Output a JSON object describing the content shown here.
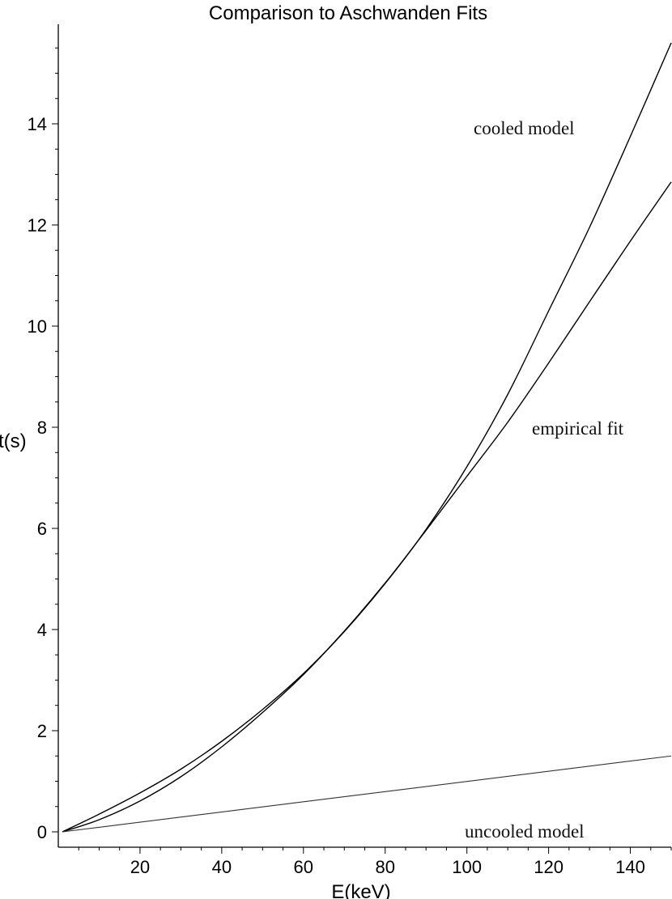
{
  "chart_data": {
    "type": "line",
    "title": "Comparison to Aschwanden Fits",
    "xlabel": "E(keV)",
    "ylabel": "t(s)",
    "xlim": [
      0,
      150
    ],
    "ylim": [
      0,
      15.8
    ],
    "grid": false,
    "x_ticks": [
      20,
      40,
      60,
      80,
      100,
      120,
      140
    ],
    "y_ticks": [
      0,
      2,
      4,
      6,
      8,
      10,
      12,
      14
    ],
    "series": [
      {
        "name": "cooled model",
        "x": [
          1,
          10,
          20,
          30,
          40,
          50,
          60,
          70,
          80,
          90,
          100,
          110,
          120,
          130,
          140,
          150
        ],
        "y": [
          0,
          0.35,
          0.77,
          1.24,
          1.79,
          2.42,
          3.13,
          3.96,
          4.91,
          5.98,
          7.22,
          8.65,
          10.3,
          11.95,
          13.75,
          15.6
        ]
      },
      {
        "name": "empirical fit",
        "x": [
          1,
          10,
          20,
          30,
          40,
          50,
          60,
          70,
          80,
          90,
          100,
          110,
          120,
          130,
          140,
          150
        ],
        "y": [
          0,
          0.24,
          0.61,
          1.09,
          1.68,
          2.36,
          3.11,
          3.97,
          4.92,
          5.96,
          7.03,
          8.1,
          9.27,
          10.48,
          11.68,
          12.85
        ]
      },
      {
        "name": "uncooled model",
        "x": [
          1,
          150
        ],
        "y": [
          0,
          1.5
        ]
      }
    ],
    "annotations": [
      "cooled model",
      "empirical fit",
      "uncooled model"
    ]
  }
}
